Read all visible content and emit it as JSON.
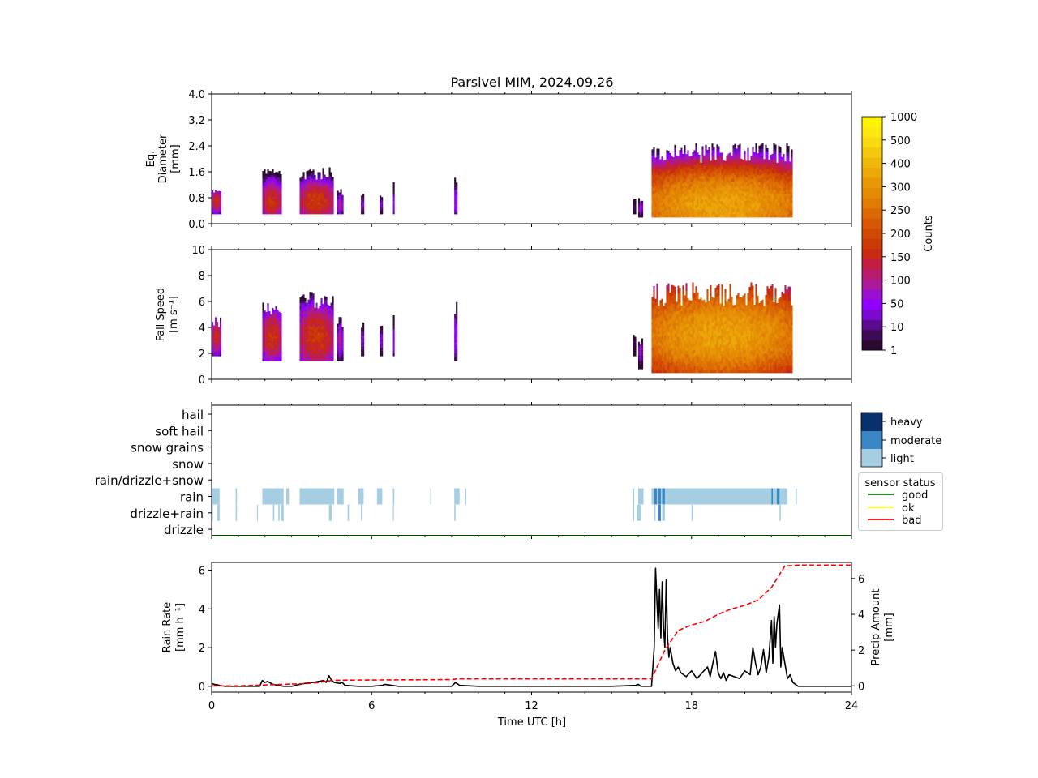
{
  "figure": {
    "title": "Parsivel MIM, 2024.09.26"
  },
  "colors": {
    "counts_levels": [
      "#2a0a2e",
      "#3d0a55",
      "#5a0a8c",
      "#7a0ad0",
      "#8f00ff",
      "#9a10d0",
      "#aa1a9a",
      "#b81c6c",
      "#c21e42",
      "#c82a14",
      "#cc3a06",
      "#d04a04",
      "#d65804",
      "#dc6a04",
      "#e07c04",
      "#e48a04",
      "#e89806",
      "#eca808",
      "#f0b80a",
      "#f4c80c",
      "#f8d80e",
      "#fce810",
      "#fff200"
    ],
    "rain_light": "#a6cee3",
    "rain_moderate": "#3a87c4",
    "rain_heavy": "#08306b",
    "status_good": "#008000",
    "status_ok": "#ffff00",
    "status_bad": "#ff0000",
    "rain_rate_line": "#000000",
    "precip_amount_line": "#ff0000"
  },
  "chart_data": [
    {
      "type": "heatmap",
      "panel": "diameter",
      "ylabel_lines": [
        "Eq.",
        "Diameter",
        "[mm]"
      ],
      "ylim": [
        0.0,
        4.0
      ],
      "yticks": [
        "0.0",
        "0.8",
        "1.6",
        "2.4",
        "3.2",
        "4.0"
      ],
      "xlim": [
        0,
        24
      ],
      "episodes": [
        {
          "start": 0.0,
          "end": 0.35,
          "dmin": 0.3,
          "dmax": 1.1,
          "core": 0.7,
          "peak": 18
        },
        {
          "start": 1.9,
          "end": 2.6,
          "dmin": 0.3,
          "dmax": 1.7,
          "core": 0.7,
          "peak": 20
        },
        {
          "start": 3.3,
          "end": 4.6,
          "dmin": 0.3,
          "dmax": 1.75,
          "core": 0.7,
          "peak": 22
        },
        {
          "start": 4.7,
          "end": 4.95,
          "dmin": 0.3,
          "dmax": 1.1,
          "core": 0.6,
          "peak": 8
        },
        {
          "start": 5.6,
          "end": 5.7,
          "dmin": 0.3,
          "dmax": 1.0,
          "core": 0.6,
          "peak": 6
        },
        {
          "start": 6.3,
          "end": 6.4,
          "dmin": 0.3,
          "dmax": 1.0,
          "core": 0.6,
          "peak": 6
        },
        {
          "start": 6.8,
          "end": 6.85,
          "dmin": 0.3,
          "dmax": 1.3,
          "core": 0.6,
          "peak": 4
        },
        {
          "start": 9.1,
          "end": 9.25,
          "dmin": 0.3,
          "dmax": 1.55,
          "core": 0.7,
          "peak": 9
        },
        {
          "start": 15.8,
          "end": 15.9,
          "dmin": 0.3,
          "dmax": 0.9,
          "core": 0.5,
          "peak": 3
        },
        {
          "start": 16.0,
          "end": 16.2,
          "dmin": 0.2,
          "dmax": 0.8,
          "core": 0.5,
          "peak": 6
        },
        {
          "start": 16.5,
          "end": 21.8,
          "dmin": 0.2,
          "dmax": 2.5,
          "core": 0.6,
          "peak": 180
        }
      ]
    },
    {
      "type": "heatmap",
      "panel": "fall_speed",
      "ylabel_lines": [
        "Fall Speed",
        "[m s⁻¹]"
      ],
      "ylim": [
        0,
        10
      ],
      "yticks": [
        "0",
        "2",
        "4",
        "6",
        "8",
        "10"
      ],
      "xlim": [
        0,
        24
      ],
      "episodes": [
        {
          "start": 0.0,
          "end": 0.35,
          "vmin": 1.8,
          "vmax": 4.8,
          "core": 3.3,
          "peak": 18
        },
        {
          "start": 1.9,
          "end": 2.6,
          "vmin": 1.4,
          "vmax": 6.0,
          "core": 3.3,
          "peak": 20
        },
        {
          "start": 3.3,
          "end": 4.6,
          "vmin": 1.4,
          "vmax": 6.9,
          "core": 3.3,
          "peak": 22
        },
        {
          "start": 4.7,
          "end": 4.95,
          "vmin": 1.4,
          "vmax": 4.8,
          "core": 3.0,
          "peak": 8
        },
        {
          "start": 5.6,
          "end": 5.7,
          "vmin": 1.8,
          "vmax": 4.5,
          "core": 3.0,
          "peak": 6
        },
        {
          "start": 6.3,
          "end": 6.4,
          "vmin": 1.8,
          "vmax": 4.5,
          "core": 3.0,
          "peak": 6
        },
        {
          "start": 6.8,
          "end": 6.85,
          "vmin": 1.8,
          "vmax": 5.0,
          "core": 3.0,
          "peak": 4
        },
        {
          "start": 9.1,
          "end": 9.25,
          "vmin": 1.4,
          "vmax": 6.0,
          "core": 3.3,
          "peak": 9
        },
        {
          "start": 15.8,
          "end": 15.9,
          "vmin": 1.8,
          "vmax": 3.8,
          "core": 2.8,
          "peak": 3
        },
        {
          "start": 16.0,
          "end": 16.2,
          "vmin": 0.8,
          "vmax": 3.2,
          "core": 2.2,
          "peak": 6
        },
        {
          "start": 16.5,
          "end": 21.8,
          "vmin": 0.5,
          "vmax": 7.5,
          "core": 3.5,
          "peak": 180
        }
      ]
    },
    {
      "type": "heatmap",
      "panel": "precip_type",
      "categories": [
        "hail",
        "soft hail",
        "snow grains",
        "snow",
        "rain/drizzle+snow",
        "rain",
        "drizzle+rain",
        "drizzle"
      ],
      "intensity_legend": [
        "heavy",
        "moderate",
        "light"
      ],
      "status_legend": {
        "title": "sensor status",
        "items": [
          "good",
          "ok",
          "bad"
        ]
      },
      "status_value": "good",
      "rain_segments": [
        {
          "start": 0.0,
          "end": 0.3,
          "level": "light"
        },
        {
          "start": 0.9,
          "end": 0.95,
          "level": "light"
        },
        {
          "start": 1.9,
          "end": 2.7,
          "level": "light"
        },
        {
          "start": 2.8,
          "end": 2.9,
          "level": "light"
        },
        {
          "start": 3.3,
          "end": 4.6,
          "level": "light"
        },
        {
          "start": 4.7,
          "end": 4.95,
          "level": "light"
        },
        {
          "start": 5.5,
          "end": 5.7,
          "level": "light"
        },
        {
          "start": 6.2,
          "end": 6.4,
          "level": "light"
        },
        {
          "start": 6.8,
          "end": 6.85,
          "level": "light"
        },
        {
          "start": 8.2,
          "end": 8.23,
          "level": "light"
        },
        {
          "start": 9.1,
          "end": 9.3,
          "level": "light"
        },
        {
          "start": 9.5,
          "end": 9.55,
          "level": "light"
        },
        {
          "start": 15.8,
          "end": 15.85,
          "level": "light"
        },
        {
          "start": 16.0,
          "end": 16.2,
          "level": "light"
        },
        {
          "start": 16.5,
          "end": 21.6,
          "level": "light"
        },
        {
          "start": 16.6,
          "end": 16.7,
          "level": "moderate"
        },
        {
          "start": 16.75,
          "end": 16.85,
          "level": "moderate"
        },
        {
          "start": 16.9,
          "end": 17.0,
          "level": "moderate"
        },
        {
          "start": 21.0,
          "end": 21.05,
          "level": "moderate"
        },
        {
          "start": 21.2,
          "end": 21.3,
          "level": "moderate"
        },
        {
          "start": 21.9,
          "end": 21.95,
          "level": "light"
        }
      ],
      "drizzle_rain_segments": [
        {
          "start": 0.0,
          "end": 0.05,
          "level": "light"
        },
        {
          "start": 0.2,
          "end": 0.3,
          "level": "light"
        },
        {
          "start": 0.9,
          "end": 0.95,
          "level": "light"
        },
        {
          "start": 1.7,
          "end": 1.73,
          "level": "light"
        },
        {
          "start": 2.3,
          "end": 2.35,
          "level": "light"
        },
        {
          "start": 2.5,
          "end": 2.55,
          "level": "light"
        },
        {
          "start": 2.6,
          "end": 2.7,
          "level": "light"
        },
        {
          "start": 4.4,
          "end": 4.5,
          "level": "light"
        },
        {
          "start": 5.1,
          "end": 5.15,
          "level": "light"
        },
        {
          "start": 5.6,
          "end": 5.65,
          "level": "light"
        },
        {
          "start": 6.8,
          "end": 6.83,
          "level": "light"
        },
        {
          "start": 9.1,
          "end": 9.15,
          "level": "light"
        },
        {
          "start": 15.8,
          "end": 15.85,
          "level": "light"
        },
        {
          "start": 15.95,
          "end": 16.1,
          "level": "light"
        },
        {
          "start": 16.6,
          "end": 16.65,
          "level": "light"
        },
        {
          "start": 16.75,
          "end": 16.85,
          "level": "moderate"
        },
        {
          "start": 16.9,
          "end": 17.0,
          "level": "light"
        },
        {
          "start": 18.0,
          "end": 18.05,
          "level": "light"
        },
        {
          "start": 21.3,
          "end": 21.35,
          "level": "light"
        }
      ]
    },
    {
      "type": "line",
      "panel": "rain_rate",
      "ylabel_lines": [
        "Rain Rate",
        "[mm h⁻¹]"
      ],
      "y2label_lines": [
        "Precip Amount",
        "[mm]"
      ],
      "xlabel": "Time UTC [h]",
      "xlim": [
        0,
        24
      ],
      "xticks": [
        "0",
        "6",
        "12",
        "18",
        "24"
      ],
      "ylim": [
        -0.3,
        6.4
      ],
      "yticks": [
        "0",
        "2",
        "4",
        "6"
      ],
      "y2lim": [
        -0.35,
        6.9
      ],
      "y2ticks": [
        "0",
        "2",
        "4",
        "6"
      ],
      "series": [
        {
          "axis": "left",
          "style": "solid",
          "x": [
            0,
            0.1,
            0.3,
            0.5,
            1.0,
            1.8,
            1.9,
            2.0,
            2.1,
            2.3,
            2.5,
            2.7,
            3.0,
            3.3,
            3.5,
            3.8,
            4.0,
            4.2,
            4.3,
            4.4,
            4.5,
            4.6,
            4.8,
            4.9,
            5.0,
            5.5,
            6.0,
            6.4,
            6.5,
            7.0,
            9.0,
            9.15,
            9.3,
            10,
            15,
            15.9,
            16.0,
            16.1,
            16.2,
            16.5,
            16.6,
            16.65,
            16.7,
            16.75,
            16.8,
            16.85,
            16.9,
            16.95,
            17.0,
            17.05,
            17.1,
            17.15,
            17.2,
            17.3,
            17.4,
            17.5,
            17.6,
            17.8,
            18.0,
            18.2,
            18.4,
            18.6,
            18.7,
            18.8,
            18.9,
            19.0,
            19.1,
            19.2,
            19.3,
            19.4,
            19.6,
            19.8,
            20.0,
            20.2,
            20.3,
            20.4,
            20.5,
            20.6,
            20.7,
            20.8,
            20.9,
            21.0,
            21.05,
            21.1,
            21.15,
            21.2,
            21.3,
            21.35,
            21.4,
            21.5,
            21.6,
            21.7,
            21.8,
            22.0,
            24
          ],
          "values": [
            0.15,
            0.1,
            0.05,
            0,
            0,
            0,
            0.3,
            0.2,
            0.25,
            0.1,
            0.05,
            0,
            0,
            0.1,
            0.15,
            0.2,
            0.25,
            0.3,
            0.2,
            0.55,
            0.3,
            0.2,
            0.15,
            0.2,
            0.05,
            0,
            0,
            0.05,
            0.1,
            0,
            0,
            0.2,
            0.05,
            0,
            0,
            0.05,
            0.1,
            0,
            0,
            0,
            2.0,
            6.1,
            4.5,
            3.0,
            5.0,
            2.5,
            5.4,
            3.0,
            2.0,
            5.5,
            2.5,
            1.5,
            2.0,
            1.2,
            0.8,
            1.0,
            0.7,
            0.5,
            0.8,
            0.4,
            0.7,
            1.0,
            0.5,
            1.2,
            1.8,
            0.7,
            0.4,
            0.7,
            0.3,
            0.6,
            0.5,
            0.4,
            0.8,
            0.6,
            2.0,
            1.2,
            0.6,
            1.0,
            1.9,
            0.7,
            1.5,
            3.4,
            1.2,
            3.6,
            2.0,
            3.2,
            4.2,
            1.0,
            2.0,
            1.2,
            0.4,
            0.6,
            0.2,
            0,
            0
          ]
        },
        {
          "axis": "right",
          "style": "dashed",
          "x": [
            0,
            1.0,
            2.0,
            3.0,
            3.5,
            4.0,
            4.5,
            5.0,
            9.0,
            9.2,
            16.5,
            17.0,
            17.5,
            18.0,
            18.5,
            19.0,
            19.5,
            20.0,
            20.5,
            21.0,
            21.5,
            22.0,
            24
          ],
          "values": [
            0,
            0,
            0.05,
            0.1,
            0.12,
            0.18,
            0.3,
            0.32,
            0.35,
            0.39,
            0.39,
            2.0,
            3.1,
            3.4,
            3.6,
            4.0,
            4.3,
            4.5,
            4.8,
            5.5,
            6.7,
            6.75,
            6.75
          ]
        }
      ]
    }
  ],
  "colorbar": {
    "label": "Counts",
    "ticks": [
      "1",
      "10",
      "50",
      "100",
      "150",
      "200",
      "250",
      "300",
      "400",
      "500",
      "1000"
    ]
  }
}
